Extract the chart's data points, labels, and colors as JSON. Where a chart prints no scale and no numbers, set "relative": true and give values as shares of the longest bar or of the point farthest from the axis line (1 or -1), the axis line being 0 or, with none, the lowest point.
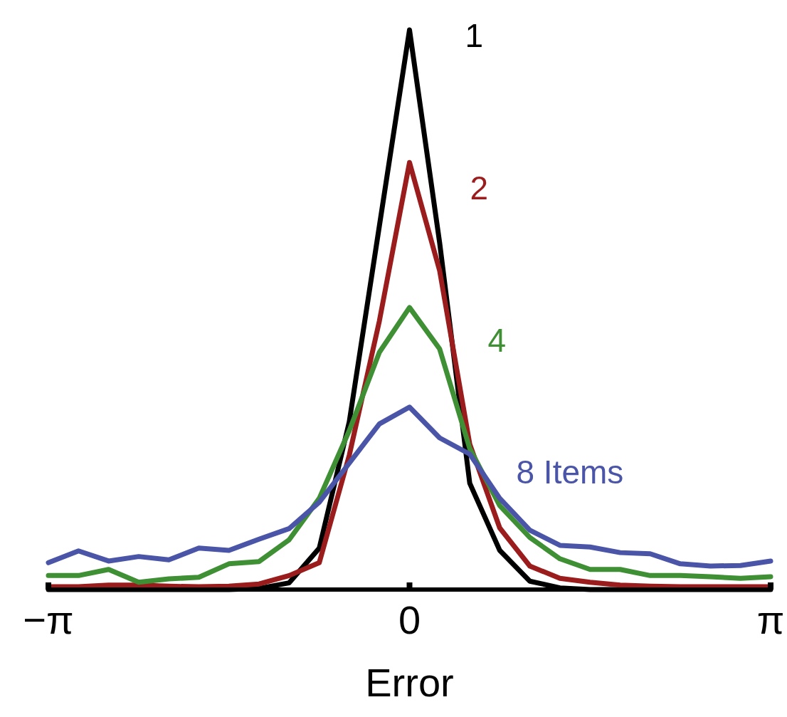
{
  "chart_data": {
    "type": "line",
    "relative": true,
    "xlabel": "Error",
    "xlim": [
      -3.142,
      3.142
    ],
    "xticks": [
      {
        "value": -3.142,
        "label": "−π"
      },
      0,
      {
        "value": 3.142,
        "label": "π"
      }
    ],
    "x": [
      -3.142,
      -2.88,
      -2.618,
      -2.356,
      -2.094,
      -1.833,
      -1.571,
      -1.309,
      -1.047,
      -0.785,
      -0.524,
      -0.262,
      0,
      0.262,
      0.524,
      0.785,
      1.047,
      1.309,
      1.571,
      1.833,
      2.094,
      2.356,
      2.618,
      2.88,
      3.142
    ],
    "line_style": "solid",
    "marker": "none",
    "grid": false,
    "series": [
      {
        "name": "1",
        "color": "#000000",
        "values": [
          0,
          0,
          0,
          0,
          0,
          0,
          0,
          0.002,
          0.012,
          0.074,
          0.3,
          0.65,
          1,
          0.62,
          0.19,
          0.07,
          0.015,
          0.003,
          0,
          0,
          0,
          0,
          0,
          0,
          0
        ]
      },
      {
        "name": "2",
        "color": "#9b1c1c",
        "values": [
          0.005,
          0.005,
          0.008,
          0.008,
          0.006,
          0.005,
          0.006,
          0.01,
          0.025,
          0.048,
          0.24,
          0.48,
          0.763,
          0.57,
          0.26,
          0.11,
          0.042,
          0.02,
          0.013,
          0.008,
          0.006,
          0.005,
          0.005,
          0.005,
          0.005
        ]
      },
      {
        "name": "4",
        "color": "#3f8f34",
        "values": [
          0.025,
          0.025,
          0.036,
          0.013,
          0.019,
          0.022,
          0.046,
          0.05,
          0.089,
          0.163,
          0.284,
          0.424,
          0.504,
          0.43,
          0.252,
          0.15,
          0.093,
          0.055,
          0.036,
          0.036,
          0.025,
          0.025,
          0.023,
          0.02,
          0.023
        ]
      },
      {
        "name": "8 Items",
        "color": "#4a55a8",
        "values": [
          0.048,
          0.069,
          0.051,
          0.059,
          0.053,
          0.074,
          0.07,
          0.09,
          0.109,
          0.156,
          0.226,
          0.296,
          0.326,
          0.271,
          0.242,
          0.163,
          0.106,
          0.079,
          0.076,
          0.066,
          0.064,
          0.046,
          0.042,
          0.043,
          0.051
        ]
      }
    ]
  }
}
